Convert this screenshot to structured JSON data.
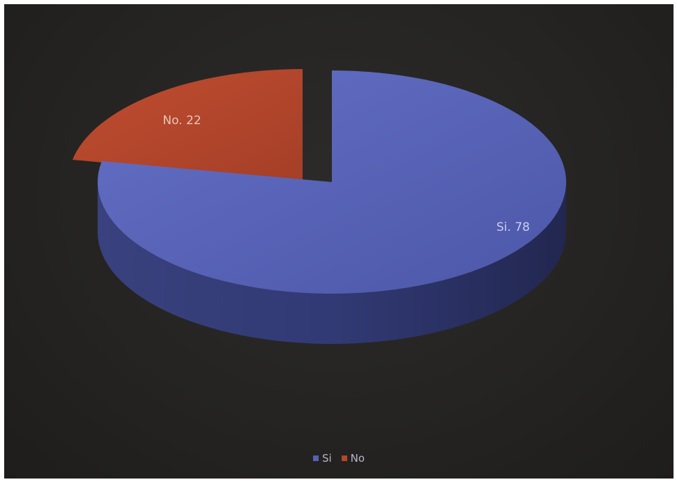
{
  "chart_data": {
    "type": "pie",
    "style": "3d-exploded",
    "categories": [
      "Si",
      "No"
    ],
    "values": [
      78,
      22
    ],
    "colors": [
      "#5560b6",
      "#b4462c"
    ],
    "data_labels": [
      "Si. 78",
      "No. 22"
    ],
    "legend": {
      "position": "bottom",
      "entries": [
        {
          "label": "Si",
          "color": "#5560b6"
        },
        {
          "label": "No",
          "color": "#b4462c"
        }
      ]
    }
  }
}
